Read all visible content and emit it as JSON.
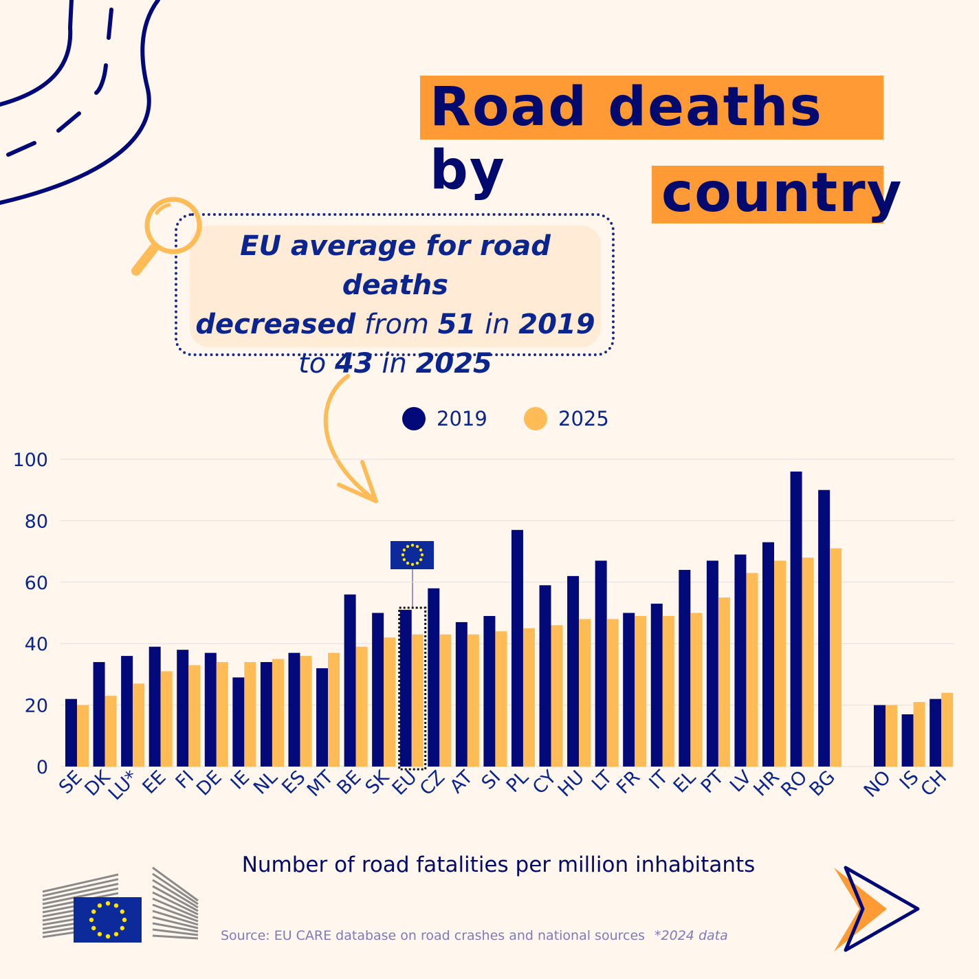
{
  "title": {
    "line1": "Road deaths by",
    "line2": "country"
  },
  "callout": {
    "p1": "EU average for road deaths",
    "p2b": "decreased",
    "p3": " from ",
    "p4b": "51",
    "p5": " in ",
    "p6b": "2019",
    "p7": "to ",
    "p8b": "43",
    "p9": " in ",
    "p10b": "2025"
  },
  "colors": {
    "c2019": "#020a7a",
    "c2025": "#ffbb55",
    "background": "#fff6ee",
    "title_highlight": "#ff9a35"
  },
  "chart_data": {
    "type": "bar",
    "xlabel": "Number of road fatalities per million inhabitants",
    "ylabel": "",
    "ylim": [
      0,
      100
    ],
    "yticks": [
      0,
      20,
      40,
      60,
      80,
      100
    ],
    "grid": true,
    "legend_placement": "top-center",
    "highlight": "EU",
    "categories": [
      "SE",
      "DK",
      "LU*",
      "EE",
      "FI",
      "DE",
      "IE",
      "NL",
      "ES",
      "MT",
      "BE",
      "SK",
      "EU",
      "CZ",
      "AT",
      "SI",
      "PL",
      "CY",
      "HU",
      "LT",
      "FR",
      "IT",
      "EL",
      "PT",
      "LV",
      "HR",
      "RO",
      "BG",
      "NO",
      "IS",
      "CH"
    ],
    "series": [
      {
        "name": "2019",
        "values": [
          22,
          34,
          36,
          39,
          38,
          37,
          29,
          34,
          37,
          32,
          56,
          50,
          51,
          58,
          47,
          49,
          77,
          59,
          62,
          67,
          50,
          53,
          64,
          67,
          69,
          73,
          96,
          90,
          20,
          17,
          22
        ]
      },
      {
        "name": "2025",
        "values": [
          20,
          23,
          27,
          31,
          33,
          34,
          34,
          35,
          36,
          37,
          39,
          42,
          43,
          43,
          43,
          44,
          45,
          46,
          48,
          48,
          49,
          49,
          50,
          55,
          63,
          67,
          68,
          71,
          20,
          21,
          24
        ]
      }
    ]
  },
  "source": "Source: EU CARE database on road crashes and national sources",
  "footnote": "*2024 data"
}
